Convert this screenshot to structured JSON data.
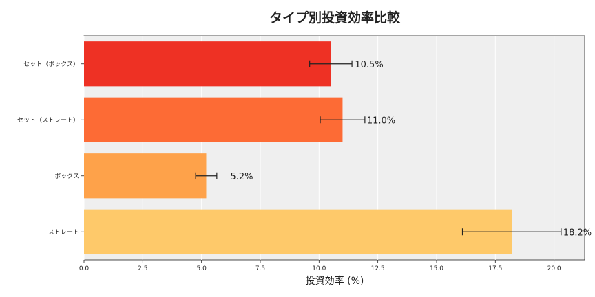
{
  "chart_data": {
    "type": "bar",
    "orientation": "horizontal",
    "title": "タイプ別投資効率比較",
    "xlabel": "投資効率 (%)",
    "ylabel": "",
    "xlim": [
      0,
      21.3
    ],
    "xticks": [
      "0.0",
      "2.5",
      "5.0",
      "7.5",
      "10.0",
      "12.5",
      "15.0",
      "17.5",
      "20.0"
    ],
    "grid": true,
    "background": "#efefef",
    "categories": [
      "セット（ボックス）",
      "セット（ストレート）",
      "ボックス",
      "ストレート"
    ],
    "values": [
      10.5,
      11.0,
      5.2,
      18.2
    ],
    "errors": [
      0.9,
      0.95,
      0.45,
      2.1
    ],
    "labels": [
      "10.5%",
      "11.0%",
      "5.2%",
      "18.2%"
    ],
    "colors": [
      "#ee3124",
      "#fd6b35",
      "#fea24a",
      "#fec96a"
    ]
  }
}
